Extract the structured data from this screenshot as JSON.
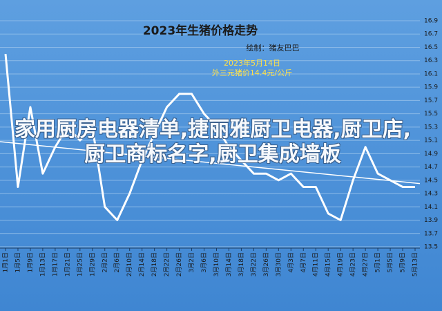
{
  "chart_data": {
    "type": "line",
    "title": "2023年生猪价格走势",
    "subtitle": "绘制：猪友巴巴",
    "annotations": [
      "2023年5月14日",
      "外三元猪价14.4元/公斤"
    ],
    "overlay": "家用厨房电器清单,捷丽雅厨卫电器,厨卫店,厨卫商标名字,厨卫集成墙板",
    "categories": [
      "1月1日",
      "1月5日",
      "1月9日",
      "1月13日",
      "1月17日",
      "1月21日",
      "1月25日",
      "1月29日",
      "2月2日",
      "2月6日",
      "2月10日",
      "2月14日",
      "2月18日",
      "2月22日",
      "2月26日",
      "3月2日",
      "3月6日",
      "3月10日",
      "3月14日",
      "3月18日",
      "3月22日",
      "3月26日",
      "3月30日",
      "4月3日",
      "4月7日",
      "4月11日",
      "4月15日",
      "4月19日",
      "4月23日",
      "4月27日",
      "5月1日",
      "5月5日",
      "5月9日",
      "5月13日"
    ],
    "series": [
      {
        "color": "#ffffff",
        "values": [
          16.4,
          14.4,
          15.6,
          14.6,
          15.0,
          15.3,
          15.1,
          15.3,
          14.1,
          13.9,
          14.3,
          14.8,
          15.2,
          15.6,
          15.8,
          15.8,
          15.5,
          15.3,
          15.0,
          14.8,
          14.6,
          14.6,
          14.5,
          14.6,
          14.4,
          14.4,
          14.0,
          13.9,
          14.5,
          15.0,
          14.6,
          14.5,
          14.4,
          14.4
        ]
      }
    ],
    "trendline": [
      15.08,
      14.45
    ],
    "ylim": [
      13.5,
      16.9
    ],
    "yticks": [
      13.5,
      13.7,
      13.9,
      14.1,
      14.3,
      14.5,
      14.7,
      14.9,
      15.1,
      15.3,
      15.5,
      15.7,
      15.9,
      16.1,
      16.3,
      16.5,
      16.7,
      16.9
    ],
    "grid": true
  }
}
